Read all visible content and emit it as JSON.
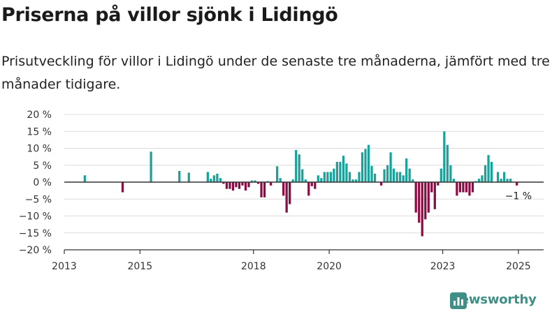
{
  "header": {
    "title": "Priserna på villor sjönk i Lidingö",
    "subtitle": "Prisutveckling för villor i Lidingö under de senaste tre månaderna, jämfört med tre månader tidigare."
  },
  "brand": {
    "name": "Newsworthy",
    "icon": "newsworthy-logo-icon",
    "color": "#3f8f86"
  },
  "chart_data": {
    "type": "bar",
    "title": "Priserna på villor sjönk i Lidingö",
    "subtitle": "Prisutveckling för villor i Lidingö under de senaste tre månaderna, jämfört med tre månader tidigare.",
    "xlabel": "",
    "ylabel": "",
    "ylim": [
      -20,
      20
    ],
    "xlim": [
      "2013-01",
      "2025-09"
    ],
    "yticks": [
      {
        "value": 20,
        "label": "20 %"
      },
      {
        "value": 15,
        "label": "15 %"
      },
      {
        "value": 10,
        "label": "10 %"
      },
      {
        "value": 5,
        "label": "5 %"
      },
      {
        "value": 0,
        "label": "0 %"
      },
      {
        "value": -5,
        "label": "−5 %"
      },
      {
        "value": -10,
        "label": "−10 %"
      },
      {
        "value": -15,
        "label": "−15 %"
      },
      {
        "value": -20,
        "label": "−20 %"
      }
    ],
    "xticks": [
      {
        "value": "2013-01",
        "label": "2013"
      },
      {
        "value": "2015-01",
        "label": "2015"
      },
      {
        "value": "2018-01",
        "label": "2018"
      },
      {
        "value": "2020-01",
        "label": "2020"
      },
      {
        "value": "2023-01",
        "label": "2023"
      },
      {
        "value": "2025-01",
        "label": "2025"
      }
    ],
    "grid": true,
    "colors": {
      "positive": "#17a39b",
      "negative": "#8d0b43"
    },
    "annotation": {
      "text": "−1 %",
      "month": "2025-01"
    },
    "data": [
      [
        "2013-07",
        2
      ],
      [
        "2014-07",
        -3
      ],
      [
        "2015-04",
        9
      ],
      [
        "2016-01",
        3.3
      ],
      [
        "2016-04",
        2.8
      ],
      [
        "2016-10",
        3
      ],
      [
        "2016-11",
        1
      ],
      [
        "2016-12",
        2
      ],
      [
        "2017-01",
        2.5
      ],
      [
        "2017-02",
        1.2
      ],
      [
        "2017-03",
        -0.5
      ],
      [
        "2017-04",
        -2
      ],
      [
        "2017-05",
        -2
      ],
      [
        "2017-06",
        -2.5
      ],
      [
        "2017-07",
        -1.5
      ],
      [
        "2017-08",
        -2
      ],
      [
        "2017-09",
        -1
      ],
      [
        "2017-10",
        -2.5
      ],
      [
        "2017-11",
        -1.5
      ],
      [
        "2017-12",
        0.5
      ],
      [
        "2018-01",
        0.5
      ],
      [
        "2018-02",
        -0.5
      ],
      [
        "2018-03",
        -4.5
      ],
      [
        "2018-04",
        -4.5
      ],
      [
        "2018-05",
        0.3
      ],
      [
        "2018-06",
        -1
      ],
      [
        "2018-08",
        4.7
      ],
      [
        "2018-09",
        1.2
      ],
      [
        "2018-10",
        -4
      ],
      [
        "2018-11",
        -9
      ],
      [
        "2018-12",
        -6.5
      ],
      [
        "2019-01",
        0.8
      ],
      [
        "2019-02",
        9.5
      ],
      [
        "2019-03",
        8.2
      ],
      [
        "2019-04",
        3.8
      ],
      [
        "2019-05",
        0.8
      ],
      [
        "2019-06",
        -4
      ],
      [
        "2019-07",
        -1.2
      ],
      [
        "2019-08",
        -2
      ],
      [
        "2019-09",
        2
      ],
      [
        "2019-10",
        1.2
      ],
      [
        "2019-11",
        3
      ],
      [
        "2019-12",
        3
      ],
      [
        "2020-01",
        3
      ],
      [
        "2020-02",
        4
      ],
      [
        "2020-03",
        6
      ],
      [
        "2020-04",
        6
      ],
      [
        "2020-05",
        7.8
      ],
      [
        "2020-06",
        5.5
      ],
      [
        "2020-07",
        3
      ],
      [
        "2020-08",
        0.8
      ],
      [
        "2020-09",
        0.8
      ],
      [
        "2020-10",
        3
      ],
      [
        "2020-11",
        8.8
      ],
      [
        "2020-12",
        9.8
      ],
      [
        "2021-01",
        11
      ],
      [
        "2021-02",
        4.8
      ],
      [
        "2021-03",
        2.5
      ],
      [
        "2021-05",
        -1
      ],
      [
        "2021-06",
        3.8
      ],
      [
        "2021-07",
        5
      ],
      [
        "2021-08",
        8.8
      ],
      [
        "2021-09",
        4
      ],
      [
        "2021-10",
        3
      ],
      [
        "2021-11",
        3
      ],
      [
        "2021-12",
        2
      ],
      [
        "2022-01",
        7
      ],
      [
        "2022-02",
        4
      ],
      [
        "2022-03",
        0.8
      ],
      [
        "2022-04",
        -9
      ],
      [
        "2022-05",
        -12
      ],
      [
        "2022-06",
        -16
      ],
      [
        "2022-07",
        -11
      ],
      [
        "2022-08",
        -9
      ],
      [
        "2022-09",
        -3
      ],
      [
        "2022-10",
        -8
      ],
      [
        "2022-11",
        -1
      ],
      [
        "2022-12",
        4
      ],
      [
        "2023-01",
        15
      ],
      [
        "2023-02",
        11
      ],
      [
        "2023-03",
        5
      ],
      [
        "2023-04",
        1
      ],
      [
        "2023-05",
        -4
      ],
      [
        "2023-06",
        -3
      ],
      [
        "2023-07",
        -3
      ],
      [
        "2023-08",
        -3
      ],
      [
        "2023-09",
        -4
      ],
      [
        "2023-10",
        -3
      ],
      [
        "2023-11",
        0.3
      ],
      [
        "2023-12",
        1
      ],
      [
        "2024-01",
        2
      ],
      [
        "2024-02",
        5
      ],
      [
        "2024-03",
        8
      ],
      [
        "2024-04",
        6
      ],
      [
        "2024-06",
        3
      ],
      [
        "2024-07",
        1
      ],
      [
        "2024-08",
        3
      ],
      [
        "2024-09",
        1
      ],
      [
        "2024-10",
        1
      ],
      [
        "2024-12",
        -1
      ]
    ]
  }
}
